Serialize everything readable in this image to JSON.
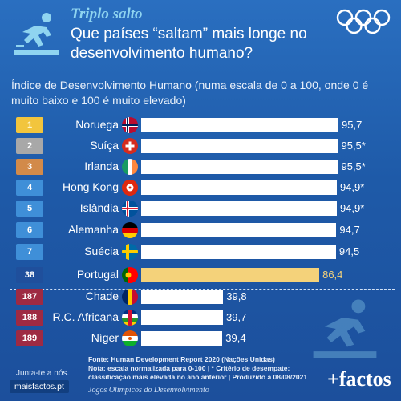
{
  "header": {
    "kicker": "Triplo salto",
    "title": "Que países “saltam” mais longe no desenvolvimento humano?"
  },
  "subtitle": "Índice de Desenvolvimento Humano (numa escala de 0 a 100, onde 0 é muito baixo e 100 é muito elevado)",
  "colors": {
    "gold": "#f2c53d",
    "silver": "#a8a8a8",
    "bronze": "#d28a4a",
    "blue_rank": "#3f8fd8",
    "portugal_rank": "#1f4f9c",
    "portugal_bar": "#f4d27a",
    "bottom_rank": "#9e2a43",
    "bar": "#ffffff",
    "portugal_value": "#f4d27a"
  },
  "chart_data": {
    "type": "bar",
    "orientation": "horizontal",
    "categories": [
      "Noruega",
      "Suíça",
      "Irlanda",
      "Hong Kong",
      "Islândia",
      "Alemanha",
      "Suécia",
      "Portugal",
      "Chade",
      "R.C. Africana",
      "Níger"
    ],
    "ranks": [
      "1",
      "2",
      "3",
      "4",
      "5",
      "6",
      "7",
      "38",
      "187",
      "188",
      "189"
    ],
    "values": [
      95.7,
      95.5,
      95.5,
      94.9,
      94.9,
      94.7,
      94.5,
      86.4,
      39.8,
      39.7,
      39.4
    ],
    "value_labels": [
      "95,7",
      "95,5*",
      "95,5*",
      "94,9*",
      "94,9*",
      "94,7",
      "94,5",
      "86,4",
      "39,8",
      "39,7",
      "39,4"
    ],
    "xlim": [
      0,
      100
    ],
    "flags": [
      "norway",
      "switzerland",
      "ireland",
      "hong-kong",
      "iceland",
      "germany",
      "sweden",
      "portugal",
      "chad",
      "central-african-republic",
      "niger"
    ],
    "highlight": "Portugal"
  },
  "footer": {
    "source": "Fonte: Human Development Report 2020 (Nações Unidas)",
    "note1": "Nota: escala normalizada para 0-100 | * Critério de desempate:",
    "note2": "classificação mais elevada no ano anterior | Produzido a 08/08/2021",
    "join": "Junta-te a nós.",
    "site": "maisfactos.pt",
    "series_name": "Jogos Olímpicos do Desenvolvimento",
    "brand": "+factos"
  }
}
